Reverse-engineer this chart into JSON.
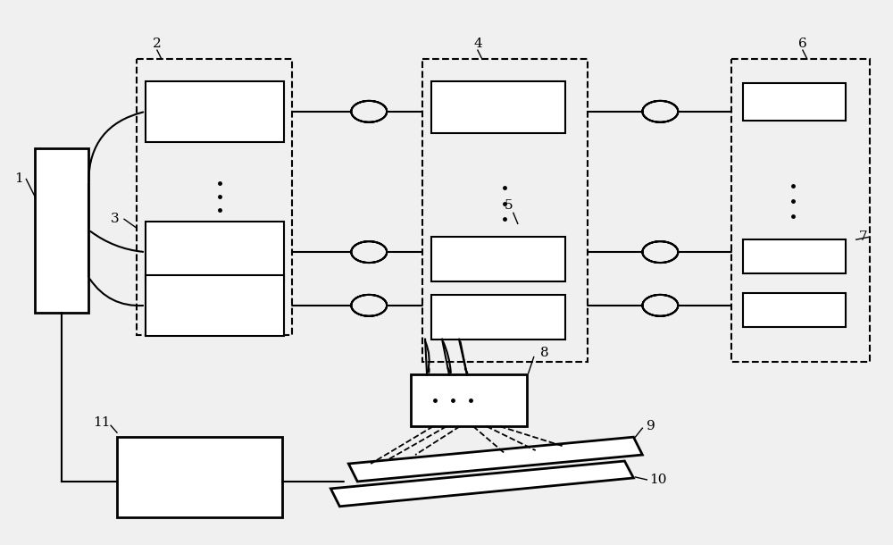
{
  "bg_color": "#f0f0f0",
  "lc": "#000000",
  "lw": 1.5,
  "fig_w": 10.0,
  "fig_h": 6.1
}
